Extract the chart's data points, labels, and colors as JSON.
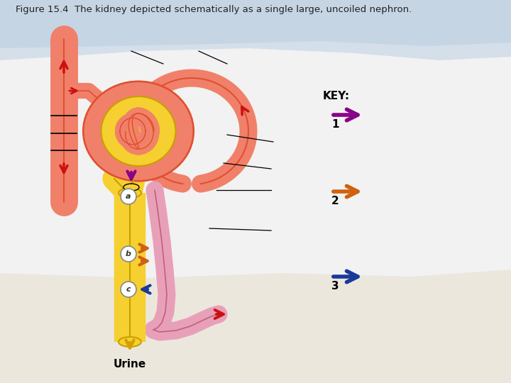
{
  "title": "Figure 15.4  The kidney depicted schematically as a single large, uncoiled nephron.",
  "title_fontsize": 9.5,
  "title_color": "#222222",
  "key_label": "KEY:",
  "key_items": [
    {
      "number": "1",
      "color": "#880088"
    },
    {
      "number": "2",
      "color": "#d06010"
    },
    {
      "number": "3",
      "color": "#1a3a9a"
    }
  ],
  "urine_label": "Urine",
  "salmon": "#f0806a",
  "salmon_dark": "#e05030",
  "salmon_light": "#f8b090",
  "yellow": "#f5d030",
  "yellow_dark": "#c8a000",
  "pink": "#e8a0b8",
  "pink_dark": "#c06080",
  "orange": "#d06010",
  "purple": "#880088",
  "blue": "#1a3a9a",
  "red": "#cc1010",
  "gold": "#d4a000",
  "bg_blue": "#c8d8e8",
  "bg_warm": "#e8e0d0",
  "bg_white": "#f2f2f2"
}
